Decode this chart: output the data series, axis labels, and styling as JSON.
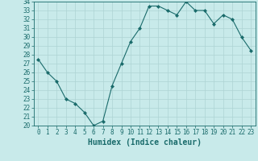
{
  "x": [
    0,
    1,
    2,
    3,
    4,
    5,
    6,
    7,
    8,
    9,
    10,
    11,
    12,
    13,
    14,
    15,
    16,
    17,
    18,
    19,
    20,
    21,
    22,
    23
  ],
  "y": [
    27.5,
    26.0,
    25.0,
    23.0,
    22.5,
    21.5,
    20.0,
    20.5,
    24.5,
    27.0,
    29.5,
    31.0,
    33.5,
    33.5,
    33.0,
    32.5,
    34.0,
    33.0,
    33.0,
    31.5,
    32.5,
    32.0,
    30.0,
    28.5
  ],
  "line_color": "#1a6b6b",
  "marker": "D",
  "marker_size": 2,
  "bg_color": "#c8eaea",
  "grid_color": "#aed4d4",
  "ylim": [
    20,
    34
  ],
  "xlim": [
    -0.5,
    23.5
  ],
  "yticks": [
    20,
    21,
    22,
    23,
    24,
    25,
    26,
    27,
    28,
    29,
    30,
    31,
    32,
    33,
    34
  ],
  "xticks": [
    0,
    1,
    2,
    3,
    4,
    5,
    6,
    7,
    8,
    9,
    10,
    11,
    12,
    13,
    14,
    15,
    16,
    17,
    18,
    19,
    20,
    21,
    22,
    23
  ],
  "xlabel": "Humidex (Indice chaleur)",
  "xlabel_fontsize": 7,
  "tick_fontsize": 5.5,
  "tick_color": "#1a6b6b",
  "axis_color": "#1a6b6b",
  "linewidth": 0.8
}
